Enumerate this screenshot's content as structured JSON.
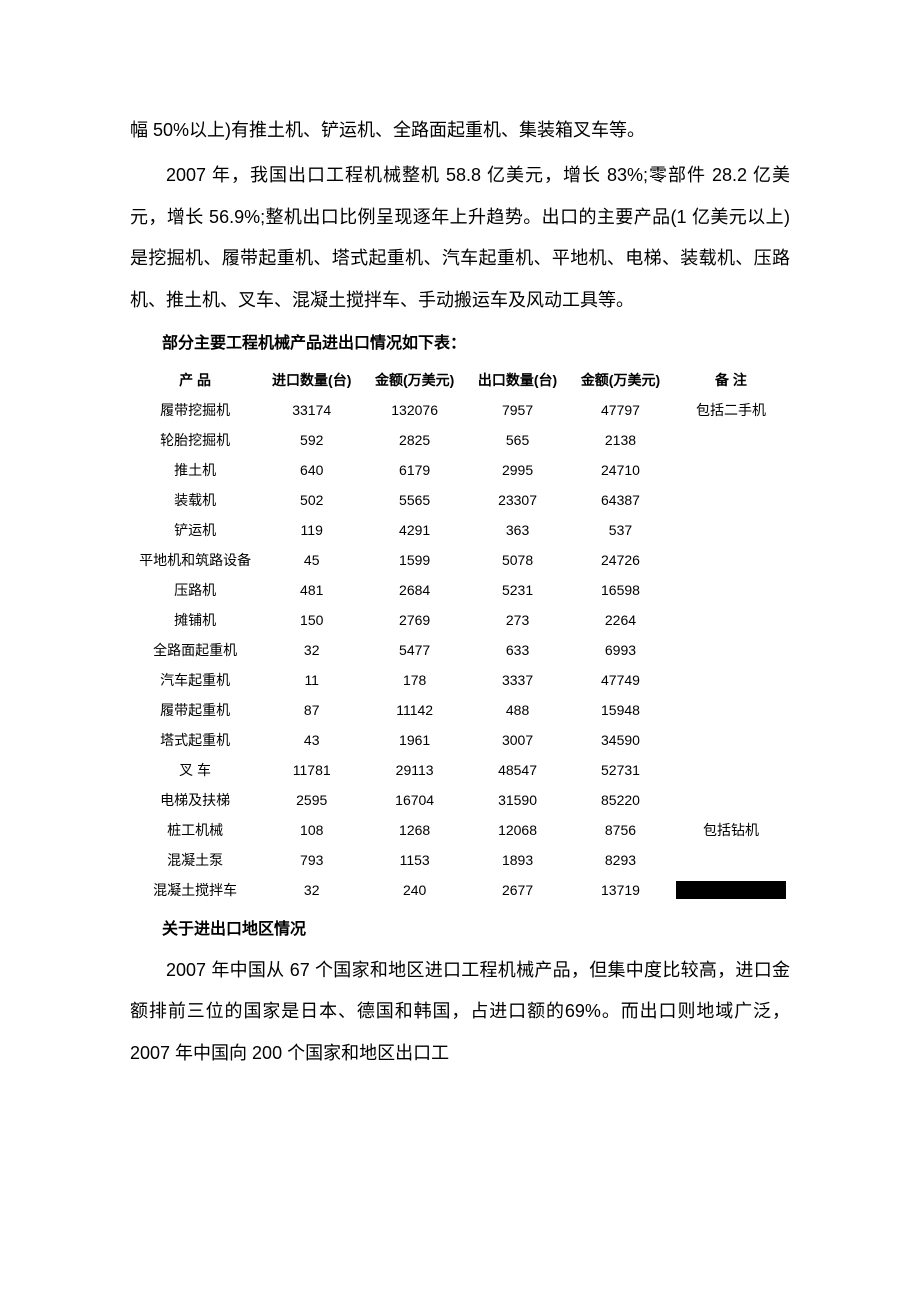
{
  "paragraphs": {
    "p1": "幅 50%以上)有推土机、铲运机、全路面起重机、集装箱叉车等。",
    "p2": "2007 年，我国出口工程机械整机 58.8 亿美元，增长 83%;零部件 28.2 亿美元，增长 56.9%;整机出口比例呈现逐年上升趋势。出口的主要产品(1 亿美元以上)是挖掘机、履带起重机、塔式起重机、汽车起重机、平地机、电梯、装载机、压路机、推土机、叉车、混凝土搅拌车、手动搬运车及风动工具等。",
    "p3": "2007 年中国从 67 个国家和地区进口工程机械产品，但集中度比较高，进口金额排前三位的国家是日本、德国和韩国，占进口额的69%。而出口则地域广泛，2007 年中国向 200 个国家和地区出口工"
  },
  "section_title": "部分主要工程机械产品进出口情况如下表：",
  "sub_title": "关于进出口地区情况",
  "table": {
    "columns": [
      "产 品",
      "进口数量(台)",
      "金额(万美元)",
      "出口数量(台)",
      "金额(万美元)",
      "备 注"
    ],
    "rows": [
      [
        "履带挖掘机",
        "33174",
        "132076",
        "7957",
        "47797",
        "包括二手机"
      ],
      [
        "轮胎挖掘机",
        "592",
        "2825",
        "565",
        "2138",
        ""
      ],
      [
        "推土机",
        "640",
        "6179",
        "2995",
        "24710",
        ""
      ],
      [
        "装载机",
        "502",
        "5565",
        "23307",
        "64387",
        ""
      ],
      [
        "铲运机",
        "119",
        "4291",
        "363",
        "537",
        ""
      ],
      [
        "平地机和筑路设备",
        "45",
        "1599",
        "5078",
        "24726",
        ""
      ],
      [
        "压路机",
        "481",
        "2684",
        "5231",
        "16598",
        ""
      ],
      [
        "摊铺机",
        "150",
        "2769",
        "273",
        "2264",
        ""
      ],
      [
        "全路面起重机",
        "32",
        "5477",
        "633",
        "6993",
        ""
      ],
      [
        "汽车起重机",
        "11",
        "178",
        "3337",
        "47749",
        ""
      ],
      [
        "履带起重机",
        "87",
        "11142",
        "488",
        "15948",
        ""
      ],
      [
        "塔式起重机",
        "43",
        "1961",
        "3007",
        "34590",
        ""
      ],
      [
        "叉 车",
        "11781",
        "29113",
        "48547",
        "52731",
        ""
      ],
      [
        "电梯及扶梯",
        "2595",
        "16704",
        "31590",
        "85220",
        ""
      ],
      [
        "桩工机械",
        "108",
        "1268",
        "12068",
        "8756",
        "包括钻机"
      ],
      [
        "混凝土泵",
        "793",
        "1153",
        "1893",
        "8293",
        ""
      ],
      [
        "混凝土搅拌车",
        "32",
        "240",
        "2677",
        "13719",
        "__REDACT__"
      ]
    ],
    "column_widths": [
      "20%",
      "16%",
      "16%",
      "16%",
      "16%",
      "16%"
    ],
    "header_fontsize": 14,
    "cell_fontsize": 14,
    "text_color": "#000000",
    "background_color": "#ffffff"
  },
  "style": {
    "body_width": 920,
    "body_height": 1302,
    "body_background": "#ffffff",
    "paragraph_fontsize": 18,
    "title_fontsize": 16,
    "paragraph_line_height": 2.3,
    "redact_color": "#000000"
  }
}
